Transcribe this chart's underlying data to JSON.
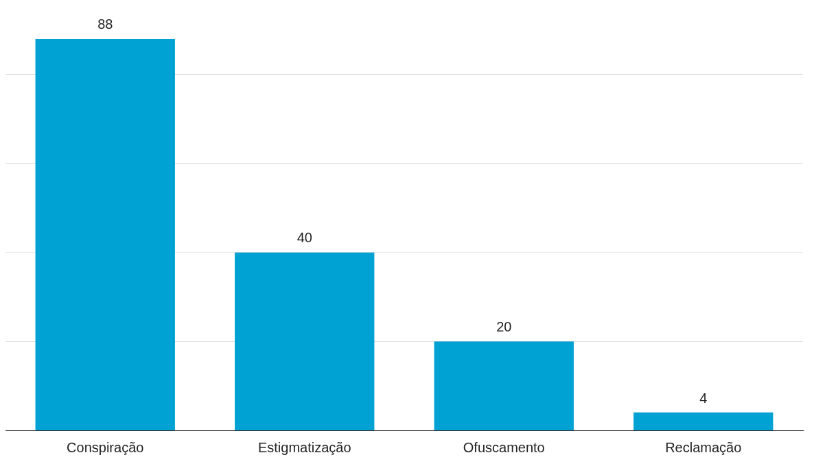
{
  "chart_data": {
    "type": "bar",
    "categories": [
      "Conspiração",
      "Estigmatização",
      "Ofuscamento",
      "Reclamação"
    ],
    "values": [
      88,
      40,
      20,
      4
    ],
    "color": "#00a2d3",
    "yticks": [
      {
        "value": 20,
        "label": null
      },
      {
        "value": 40,
        "label": null
      },
      {
        "value": 60,
        "label": null
      },
      {
        "value": 80,
        "label": null
      }
    ],
    "grid": "y",
    "tick_labels": "x",
    "data_labels": true,
    "legend": false
  }
}
